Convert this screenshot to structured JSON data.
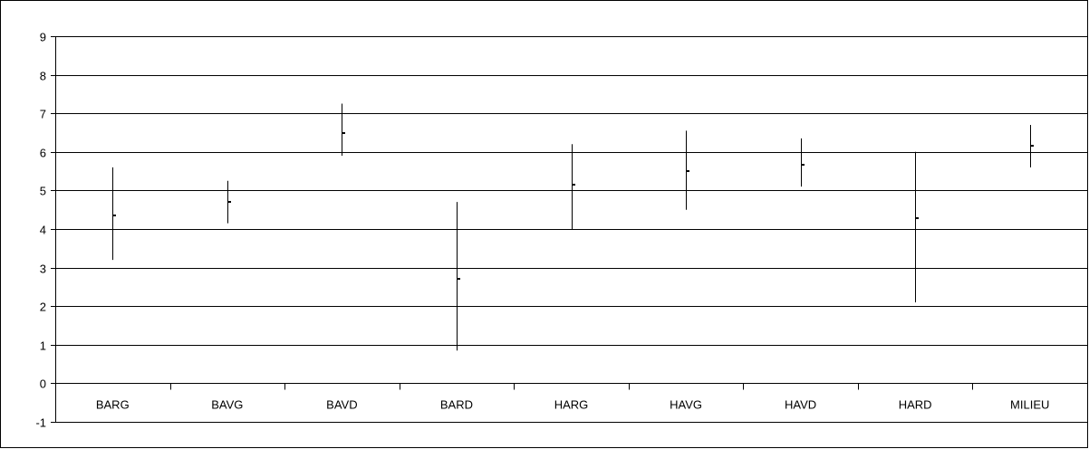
{
  "chart_data": {
    "type": "high-low-close",
    "title": "",
    "xlabel": "",
    "ylabel": "",
    "ylim": [
      -1,
      9
    ],
    "yticks": [
      -1,
      0,
      1,
      2,
      3,
      4,
      5,
      6,
      7,
      8,
      9
    ],
    "grid": true,
    "legend": "none",
    "categories": [
      "BARG",
      "BAVG",
      "BAVD",
      "BARD",
      "HARG",
      "HAVG",
      "HAVD",
      "HARD",
      "MILIEU"
    ],
    "series": [
      {
        "high": [
          5.6,
          5.25,
          7.25,
          4.7,
          6.2,
          6.55,
          6.35,
          6.0,
          6.7
        ],
        "low": [
          3.2,
          4.15,
          5.9,
          0.85,
          4.0,
          4.5,
          5.1,
          2.1,
          5.6
        ],
        "value": [
          4.35,
          4.7,
          6.5,
          2.72,
          5.15,
          5.5,
          5.67,
          4.28,
          6.15
        ]
      }
    ],
    "colors": {
      "line": "#000000",
      "grid": "#000000",
      "background": "#ffffff"
    }
  }
}
